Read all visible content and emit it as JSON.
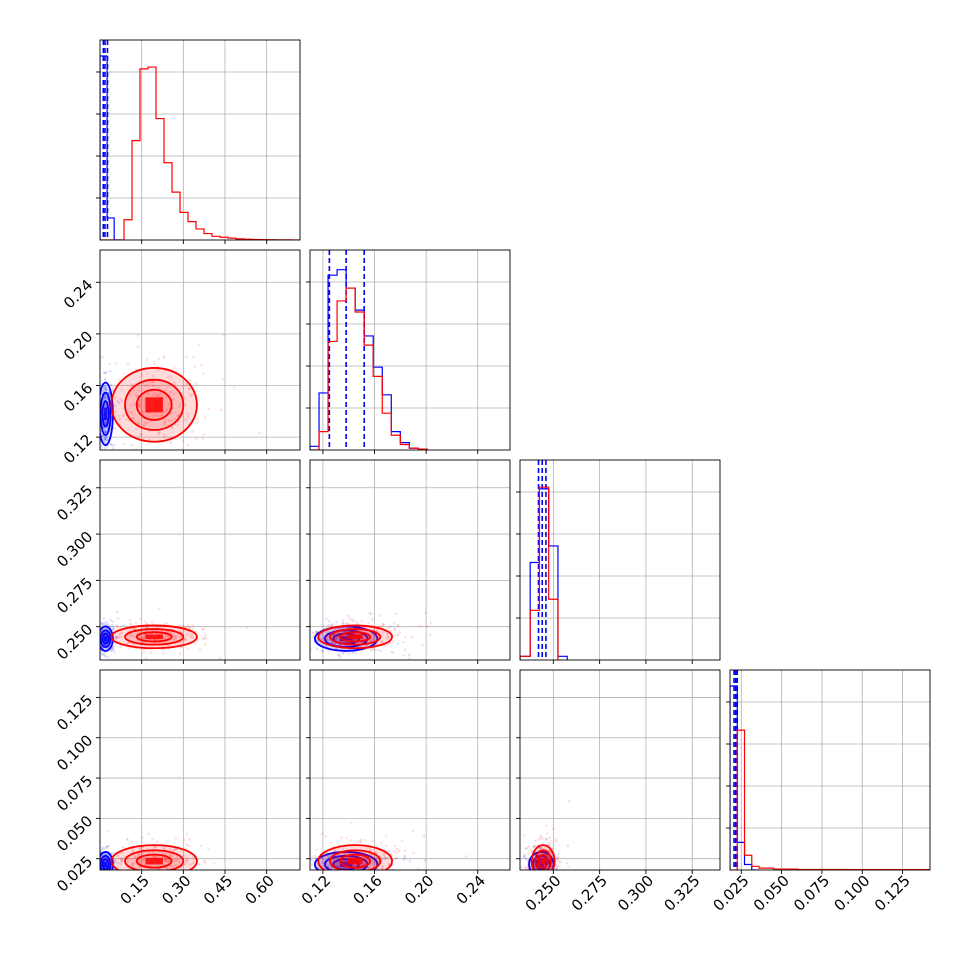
{
  "colors": {
    "blue": "#0000ff",
    "red": "#ff0000"
  },
  "chart_data": {
    "type": "corner",
    "grid": true,
    "parameters": [
      {
        "range": [
          0.0,
          0.72
        ],
        "ticks": [
          "0.15",
          "0.30",
          "0.45",
          "0.60"
        ],
        "tick_values": [
          0.15,
          0.3,
          0.45,
          0.6
        ]
      },
      {
        "range": [
          0.11,
          0.265
        ],
        "ticks": [
          "0.12",
          "0.16",
          "0.20",
          "0.24"
        ],
        "tick_values": [
          0.12,
          0.16,
          0.2,
          0.24
        ]
      },
      {
        "range": [
          0.232,
          0.34
        ],
        "ticks": [
          "0.250",
          "0.275",
          "0.300",
          "0.325"
        ],
        "tick_values": [
          0.25,
          0.275,
          0.3,
          0.325
        ]
      },
      {
        "range": [
          0.018,
          0.142
        ],
        "ticks": [
          "0.025",
          "0.050",
          "0.075",
          "0.100",
          "0.125"
        ],
        "tick_values": [
          0.025,
          0.05,
          0.075,
          0.1,
          0.125
        ]
      }
    ],
    "series": [
      {
        "color": "#0000ff",
        "quantiles": [
          [
            0.012,
            0.018,
            0.027
          ],
          [
            0.125,
            0.138,
            0.152
          ],
          [
            0.242,
            0.244,
            0.246
          ],
          [
            0.0205,
            0.0215,
            0.0225
          ]
        ],
        "hist": [
          {
            "bins": [
              0.0,
              0.0255,
              0.051,
              0.0765
            ],
            "counts": [
              1.0,
              0.12,
              0.0
            ]
          },
          {
            "bins": [
              0.11,
              0.117,
              0.124,
              0.131,
              0.138,
              0.145,
              0.152,
              0.159,
              0.166,
              0.173,
              0.18,
              0.187,
              0.194
            ],
            "counts": [
              0.02,
              0.31,
              0.95,
              0.98,
              0.88,
              0.76,
              0.62,
              0.45,
              0.3,
              0.1,
              0.04,
              0.01
            ]
          },
          {
            "bins": [
              0.232,
              0.2375,
              0.2425,
              0.2475,
              0.2525,
              0.2575
            ],
            "counts": [
              0.02,
              0.53,
              0.93,
              0.62,
              0.02
            ]
          },
          {
            "bins": [
              0.018,
              0.0225,
              0.027,
              0.0315,
              0.036
            ],
            "counts": [
              1.0,
              0.15,
              0.03,
              0.0
            ]
          }
        ]
      },
      {
        "color": "#ff0000",
        "quantiles": [],
        "hist": [
          {
            "bins": [
              0.0,
              0.0288,
              0.0576,
              0.0864,
              0.1152,
              0.144,
              0.1728,
              0.2016,
              0.2304,
              0.2592,
              0.288,
              0.3168,
              0.3456,
              0.3744,
              0.4032,
              0.432,
              0.4608,
              0.4896,
              0.5184,
              0.5472,
              0.576,
              0.6048,
              0.6336,
              0.6624,
              0.6912,
              0.72
            ],
            "counts": [
              0.0,
              0.0,
              0.0,
              0.11,
              0.54,
              0.93,
              0.94,
              0.66,
              0.42,
              0.26,
              0.15,
              0.1,
              0.06,
              0.035,
              0.02,
              0.015,
              0.01,
              0.006,
              0.004,
              0.003,
              0.002,
              0.0015,
              0.001,
              0.001,
              0.0
            ]
          },
          {
            "bins": [
              0.11,
              0.117,
              0.124,
              0.131,
              0.138,
              0.145,
              0.152,
              0.159,
              0.166,
              0.173,
              0.18,
              0.187,
              0.194,
              0.201
            ],
            "counts": [
              0.0,
              0.1,
              0.59,
              0.81,
              0.88,
              0.75,
              0.57,
              0.4,
              0.2,
              0.08,
              0.03,
              0.01,
              0.005
            ]
          },
          {
            "bins": [
              0.232,
              0.2375,
              0.2425,
              0.2475,
              0.2525
            ],
            "counts": [
              0.02,
              0.27,
              0.94,
              0.33
            ]
          },
          {
            "bins": [
              0.018,
              0.0225,
              0.027,
              0.0315,
              0.036,
              0.045,
              0.06,
              0.09,
              0.142
            ],
            "counts": [
              0.0,
              0.76,
              0.08,
              0.02,
              0.01,
              0.005,
              0.003,
              0.002
            ]
          }
        ]
      }
    ],
    "clouds": [
      {
        "color": "#0000ff",
        "mean": [
          0.02,
          0.138,
          0.2435,
          0.0215
        ],
        "sd": [
          0.012,
          0.011,
          0.003,
          0.0035
        ]
      },
      {
        "color": "#ff0000",
        "mean": [
          0.195,
          0.145,
          0.2445,
          0.0235
        ],
        "sd": [
          0.07,
          0.013,
          0.0028,
          0.0045
        ]
      }
    ]
  }
}
